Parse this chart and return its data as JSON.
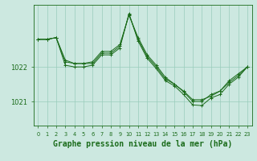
{
  "bg_color": "#cce8e0",
  "grid_color": "#99ccbb",
  "line_color": "#1a6b1a",
  "marker_color": "#1a6b1a",
  "title": "Graphe pression niveau de la mer (hPa)",
  "title_fontsize": 7.0,
  "yticks": [
    1021,
    1022
  ],
  "ylim": [
    1020.3,
    1023.8
  ],
  "xlim": [
    -0.5,
    23.5
  ],
  "xtick_labels": [
    "0",
    "1",
    "2",
    "3",
    "4",
    "5",
    "6",
    "7",
    "8",
    "9",
    "10",
    "11",
    "12",
    "13",
    "14",
    "15",
    "16",
    "17",
    "18",
    "19",
    "20",
    "21",
    "22",
    "23"
  ],
  "series1": {
    "x": [
      0,
      1,
      2,
      3,
      4,
      5,
      6,
      7,
      8,
      9,
      10,
      11,
      12,
      13,
      14,
      15,
      16,
      17,
      18,
      19,
      20,
      21,
      22,
      23
    ],
    "y": [
      1022.8,
      1022.8,
      1022.85,
      1022.2,
      1022.1,
      1022.1,
      1022.15,
      1022.45,
      1022.45,
      1022.65,
      1023.5,
      1022.85,
      1022.35,
      1022.05,
      1021.7,
      1021.5,
      1021.3,
      1021.05,
      1021.05,
      1021.15,
      1021.3,
      1021.55,
      1021.75,
      1022.0
    ]
  },
  "series2": {
    "x": [
      0,
      1,
      2,
      3,
      4,
      5,
      6,
      7,
      8,
      9,
      10,
      11,
      12,
      13,
      14,
      15,
      16,
      17,
      18,
      19,
      20,
      21,
      22,
      23
    ],
    "y": [
      1022.8,
      1022.8,
      1022.85,
      1022.05,
      1022.0,
      1022.0,
      1022.05,
      1022.35,
      1022.35,
      1022.55,
      1023.55,
      1022.75,
      1022.25,
      1021.95,
      1021.6,
      1021.45,
      1021.2,
      1020.9,
      1020.88,
      1021.1,
      1021.2,
      1021.5,
      1021.7,
      1022.0
    ]
  },
  "series3": {
    "x": [
      0,
      1,
      2,
      3,
      4,
      5,
      6,
      7,
      8,
      9,
      10,
      11,
      12,
      13,
      14,
      15,
      16,
      17,
      18,
      19,
      20,
      21,
      22,
      23
    ],
    "y": [
      1022.8,
      1022.8,
      1022.85,
      1022.15,
      1022.1,
      1022.1,
      1022.1,
      1022.4,
      1022.4,
      1022.6,
      1023.52,
      1022.8,
      1022.3,
      1022.0,
      1021.65,
      1021.5,
      1021.28,
      1021.0,
      1021.0,
      1021.2,
      1021.3,
      1021.6,
      1021.8,
      1022.0
    ]
  }
}
